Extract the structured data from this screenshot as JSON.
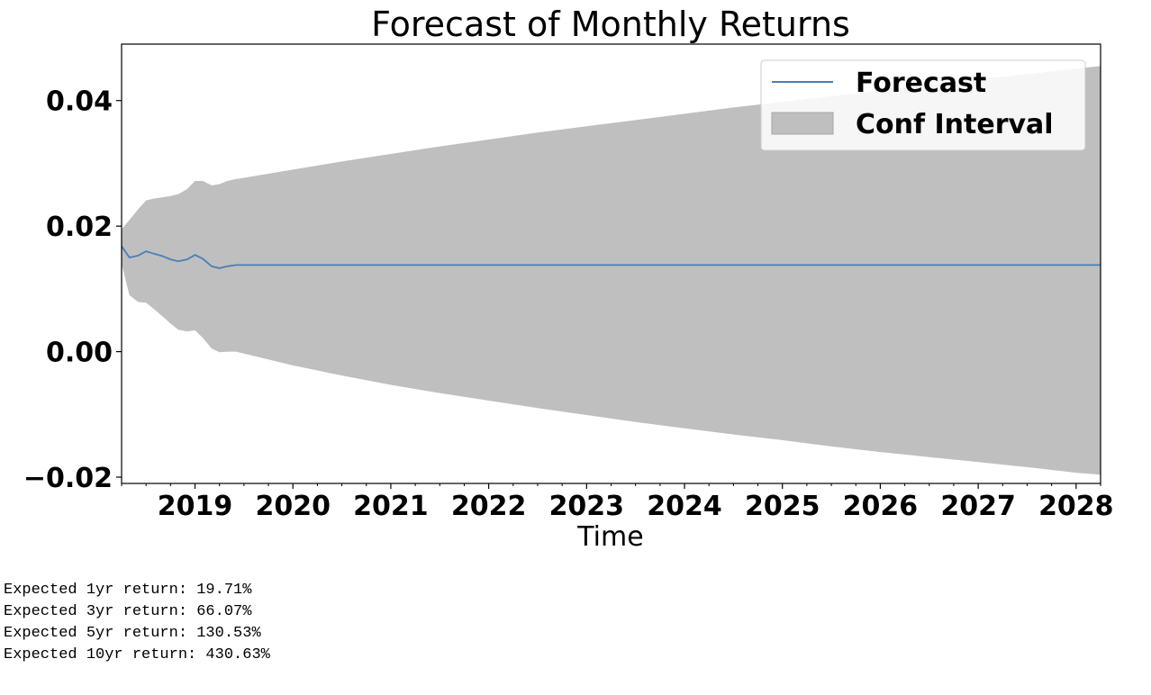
{
  "chart_data": {
    "type": "area",
    "title": "Forecast of Monthly Returns",
    "xlabel": "Time",
    "ylabel": "",
    "xlim": [
      2018.25,
      2028.25
    ],
    "ylim": [
      -0.021,
      0.049
    ],
    "x_ticks": [
      {
        "value": 2019,
        "label": "2019"
      },
      {
        "value": 2020,
        "label": "2020"
      },
      {
        "value": 2021,
        "label": "2021"
      },
      {
        "value": 2022,
        "label": "2022"
      },
      {
        "value": 2023,
        "label": "2023"
      },
      {
        "value": 2024,
        "label": "2024"
      },
      {
        "value": 2025,
        "label": "2025"
      },
      {
        "value": 2026,
        "label": "2026"
      },
      {
        "value": 2027,
        "label": "2027"
      },
      {
        "value": 2028,
        "label": "2028"
      }
    ],
    "y_ticks": [
      {
        "value": -0.02,
        "label": "−0.02"
      },
      {
        "value": 0.0,
        "label": "0.00"
      },
      {
        "value": 0.02,
        "label": "0.02"
      },
      {
        "value": 0.04,
        "label": "0.04"
      }
    ],
    "grid": false,
    "legend": {
      "position": "upper-right",
      "entries": [
        "Forecast",
        "Conf Interval"
      ]
    },
    "colors": {
      "forecast": "#4a7fb5",
      "interval": "#bfbfbf",
      "interval_edge": "#a6a6a6"
    },
    "series": [
      {
        "name": "Forecast",
        "kind": "line",
        "x": [
          2018.25,
          2018.33,
          2018.42,
          2018.5,
          2018.58,
          2018.67,
          2018.75,
          2018.83,
          2018.92,
          2019.0,
          2019.08,
          2019.17,
          2019.25,
          2019.33,
          2019.42,
          2019.5,
          2020.0,
          2021.0,
          2022.0,
          2023.0,
          2024.0,
          2025.0,
          2026.0,
          2027.0,
          2028.0,
          2028.25
        ],
        "y": [
          0.0168,
          0.015,
          0.0153,
          0.016,
          0.0156,
          0.0152,
          0.0147,
          0.0144,
          0.0147,
          0.0154,
          0.0148,
          0.0136,
          0.0133,
          0.0136,
          0.0138,
          0.0138,
          0.0138,
          0.0138,
          0.0138,
          0.0138,
          0.0138,
          0.0138,
          0.0138,
          0.0138,
          0.0138,
          0.0138
        ]
      },
      {
        "name": "Conf Interval",
        "kind": "band",
        "x": [
          2018.25,
          2018.33,
          2018.42,
          2018.5,
          2018.58,
          2018.67,
          2018.75,
          2018.83,
          2018.92,
          2019.0,
          2019.08,
          2019.17,
          2019.25,
          2019.33,
          2019.42,
          2019.5,
          2020.0,
          2020.5,
          2021.0,
          2021.5,
          2022.0,
          2022.5,
          2023.0,
          2023.5,
          2024.0,
          2024.5,
          2025.0,
          2025.5,
          2026.0,
          2026.5,
          2027.0,
          2027.5,
          2028.0,
          2028.25
        ],
        "lower": [
          0.014,
          0.009,
          0.0079,
          0.0078,
          0.0068,
          0.0056,
          0.0045,
          0.0035,
          0.0032,
          0.0034,
          0.0022,
          0.0005,
          -0.0001,
          0.0,
          0.0,
          -0.0003,
          -0.0022,
          -0.0038,
          -0.0053,
          -0.0066,
          -0.0078,
          -0.009,
          -0.0101,
          -0.0112,
          -0.0122,
          -0.0132,
          -0.0141,
          -0.0151,
          -0.016,
          -0.0168,
          -0.0176,
          -0.0184,
          -0.0193,
          -0.0196
        ],
        "upper": [
          0.0195,
          0.021,
          0.0227,
          0.0241,
          0.0244,
          0.0246,
          0.0248,
          0.0251,
          0.0259,
          0.0272,
          0.0272,
          0.0265,
          0.0267,
          0.0272,
          0.0275,
          0.0277,
          0.029,
          0.0303,
          0.0315,
          0.0327,
          0.0338,
          0.0349,
          0.0359,
          0.0369,
          0.0379,
          0.0389,
          0.0398,
          0.0407,
          0.0416,
          0.0425,
          0.0434,
          0.0442,
          0.0451,
          0.0455
        ]
      }
    ]
  },
  "output": {
    "lines": [
      "Expected 1yr return: 19.71%",
      "Expected 3yr return: 66.07%",
      "Expected 5yr return: 130.53%",
      "Expected 10yr return: 430.63%"
    ]
  }
}
